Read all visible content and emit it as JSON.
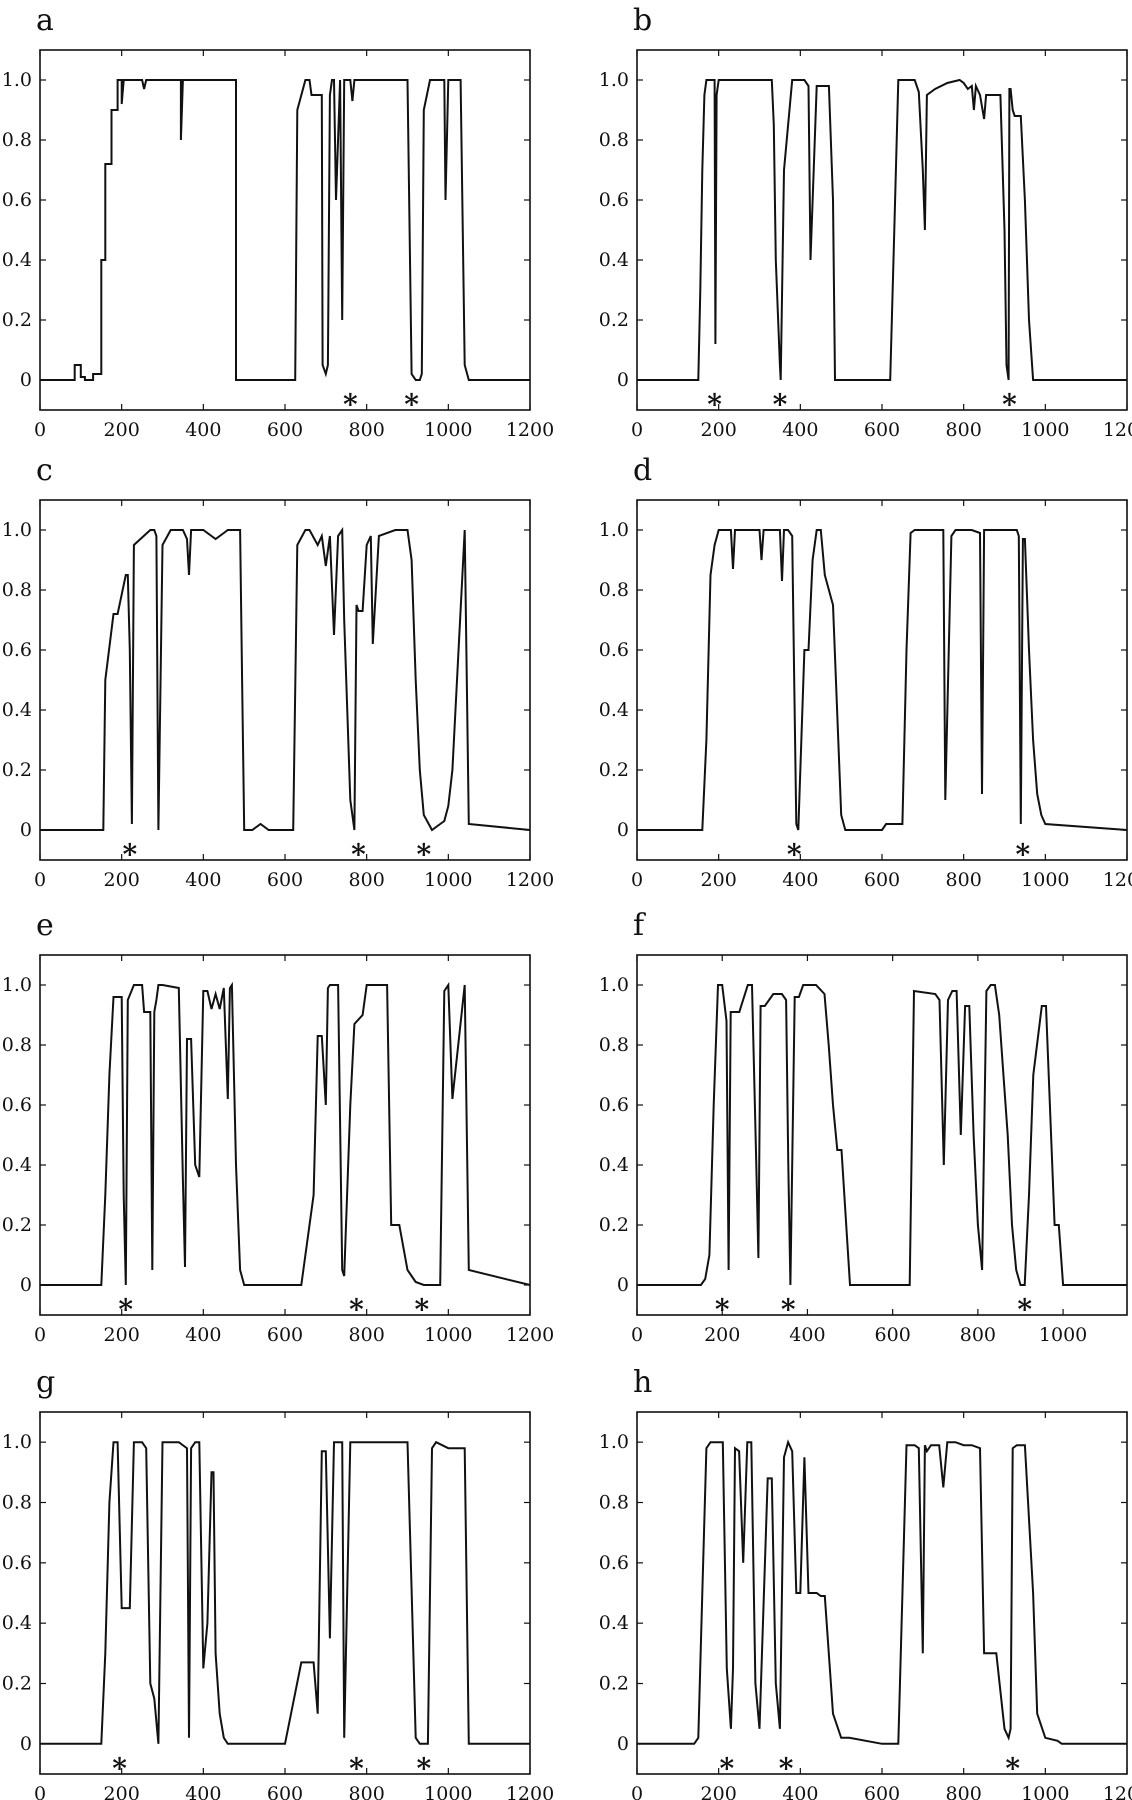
{
  "figure": {
    "background": "#ffffff",
    "line_color": "#111111"
  },
  "chart_data": [
    {
      "panel": "a",
      "type": "line",
      "xlim": [
        0,
        1200
      ],
      "ylim": [
        -0.1,
        1.1
      ],
      "xticks": [
        "0",
        "200",
        "400",
        "600",
        "800",
        "1000",
        "1200"
      ],
      "yticks": [
        "0",
        "0.2",
        "0.4",
        "0.6",
        "0.8",
        "1.0"
      ],
      "x": [
        0,
        85,
        85,
        100,
        100,
        110,
        110,
        130,
        130,
        150,
        150,
        160,
        160,
        175,
        175,
        190,
        190,
        200,
        200,
        205,
        210,
        250,
        255,
        260,
        290,
        345,
        345,
        350,
        360,
        480,
        480,
        620,
        625,
        630,
        650,
        660,
        665,
        690,
        692,
        700,
        705,
        710,
        715,
        720,
        725,
        735,
        740,
        745,
        750,
        760,
        765,
        770,
        775,
        790,
        800,
        805,
        810,
        870,
        900,
        910,
        920,
        930,
        935,
        940,
        955,
        990,
        993,
        1000,
        1030,
        1040,
        1050,
        1200
      ],
      "y": [
        0,
        0,
        0.05,
        0.05,
        0.01,
        0.01,
        0,
        0,
        0.02,
        0.02,
        0.4,
        0.4,
        0.72,
        0.72,
        0.9,
        0.9,
        1.0,
        1.0,
        0.92,
        1.0,
        1.0,
        1.0,
        0.97,
        1.0,
        1.0,
        1.0,
        0.8,
        1.0,
        1.0,
        1.0,
        0,
        0,
        0,
        0.9,
        1.0,
        1.0,
        0.95,
        0.95,
        0.05,
        0.02,
        0.05,
        0.95,
        1.0,
        1.0,
        0.6,
        1.0,
        0.2,
        1.0,
        1.0,
        1.0,
        0.93,
        1.0,
        1.0,
        1.0,
        1.0,
        1.0,
        1.0,
        1.0,
        1.0,
        0.02,
        0,
        0,
        0.02,
        0.9,
        1.0,
        1.0,
        0.6,
        1.0,
        1.0,
        0.05,
        0,
        0
      ],
      "markers": [
        {
          "x": 760,
          "label": "*"
        },
        {
          "x": 910,
          "label": "*"
        }
      ]
    },
    {
      "panel": "b",
      "type": "line",
      "xlim": [
        0,
        1200
      ],
      "ylim": [
        -0.1,
        1.1
      ],
      "xticks": [
        "0",
        "200",
        "400",
        "600",
        "800",
        "1000",
        "1200"
      ],
      "yticks": [
        "0",
        "0.2",
        "0.4",
        "0.6",
        "0.8",
        "1.0"
      ],
      "x": [
        0,
        150,
        155,
        160,
        165,
        170,
        180,
        190,
        192,
        195,
        200,
        220,
        310,
        330,
        335,
        340,
        350,
        352,
        360,
        380,
        395,
        410,
        420,
        425,
        440,
        445,
        470,
        480,
        485,
        620,
        630,
        640,
        660,
        680,
        690,
        700,
        705,
        710,
        730,
        760,
        790,
        800,
        810,
        820,
        825,
        830,
        840,
        850,
        855,
        870,
        880,
        890,
        900,
        905,
        910,
        912,
        915,
        920,
        925,
        930,
        940,
        950,
        960,
        970,
        1200
      ],
      "y": [
        0,
        0,
        0.3,
        0.7,
        0.95,
        1.0,
        1.0,
        1.0,
        0.12,
        0.95,
        1.0,
        1.0,
        1.0,
        1.0,
        0.85,
        0.4,
        0.05,
        0,
        0.7,
        1.0,
        1.0,
        1.0,
        0.98,
        0.4,
        0.98,
        0.98,
        0.98,
        0.6,
        0,
        0,
        0.5,
        1.0,
        1.0,
        1.0,
        0.96,
        0.7,
        0.5,
        0.95,
        0.97,
        0.99,
        1.0,
        0.99,
        0.97,
        0.98,
        0.9,
        0.98,
        0.95,
        0.87,
        0.95,
        0.95,
        0.95,
        0.95,
        0.5,
        0.05,
        0,
        0.97,
        0.97,
        0.9,
        0.88,
        0.88,
        0.88,
        0.6,
        0.2,
        0,
        0
      ],
      "markers": [
        {
          "x": 190,
          "label": "*"
        },
        {
          "x": 350,
          "label": "*"
        },
        {
          "x": 912,
          "label": "*"
        }
      ]
    },
    {
      "panel": "c",
      "type": "line",
      "xlim": [
        0,
        1200
      ],
      "ylim": [
        -0.1,
        1.1
      ],
      "xticks": [
        "0",
        "200",
        "400",
        "600",
        "800",
        "1000",
        "1200"
      ],
      "yticks": [
        "0",
        "0.2",
        "0.4",
        "0.6",
        "0.8",
        "1.0"
      ],
      "x": [
        0,
        155,
        160,
        180,
        190,
        210,
        215,
        220,
        225,
        230,
        270,
        280,
        285,
        290,
        300,
        320,
        350,
        360,
        365,
        370,
        400,
        430,
        450,
        460,
        480,
        490,
        495,
        500,
        520,
        530,
        540,
        560,
        620,
        630,
        650,
        660,
        680,
        690,
        700,
        710,
        720,
        730,
        740,
        745,
        760,
        770,
        775,
        780,
        785,
        790,
        800,
        810,
        815,
        830,
        870,
        900,
        910,
        920,
        930,
        940,
        960,
        980,
        990,
        1000,
        1010,
        1040,
        1050,
        1200
      ],
      "y": [
        0,
        0,
        0.5,
        0.72,
        0.72,
        0.85,
        0.85,
        0.6,
        0.02,
        0.95,
        1.0,
        1.0,
        0.98,
        0,
        0.95,
        1.0,
        1.0,
        0.97,
        0.85,
        1.0,
        1.0,
        0.97,
        0.99,
        1.0,
        1.0,
        1.0,
        0.5,
        0,
        0,
        0.01,
        0.02,
        0,
        0,
        0.95,
        1.0,
        1.0,
        0.95,
        0.98,
        0.88,
        0.98,
        0.65,
        0.98,
        1.0,
        0.7,
        0.1,
        0,
        0.75,
        0.73,
        0.73,
        0.73,
        0.95,
        0.98,
        0.62,
        0.98,
        1.0,
        1.0,
        0.9,
        0.5,
        0.2,
        0.05,
        0,
        0.02,
        0.03,
        0.08,
        0.2,
        1.0,
        0.02,
        0
      ],
      "markers": [
        {
          "x": 220,
          "label": "*"
        },
        {
          "x": 780,
          "label": "*"
        },
        {
          "x": 940,
          "label": "*"
        }
      ]
    },
    {
      "panel": "d",
      "type": "line",
      "xlim": [
        0,
        1200
      ],
      "ylim": [
        -0.1,
        1.1
      ],
      "xticks": [
        "0",
        "200",
        "400",
        "600",
        "800",
        "1000",
        "1200"
      ],
      "yticks": [
        "0",
        "0.2",
        "0.4",
        "0.6",
        "0.8",
        "1.0"
      ],
      "x": [
        0,
        160,
        170,
        180,
        190,
        200,
        210,
        230,
        235,
        240,
        260,
        280,
        300,
        305,
        310,
        330,
        350,
        355,
        360,
        370,
        380,
        385,
        390,
        395,
        410,
        420,
        430,
        440,
        450,
        460,
        470,
        480,
        500,
        510,
        550,
        600,
        610,
        650,
        660,
        670,
        680,
        700,
        730,
        750,
        755,
        770,
        780,
        800,
        820,
        840,
        845,
        850,
        900,
        920,
        930,
        935,
        940,
        945,
        950,
        960,
        970,
        980,
        990,
        1000,
        1200
      ],
      "y": [
        0,
        0,
        0.3,
        0.85,
        0.95,
        1.0,
        1.0,
        1.0,
        0.87,
        1.0,
        1.0,
        1.0,
        1.0,
        0.9,
        1.0,
        1.0,
        1.0,
        0.83,
        1.0,
        1.0,
        0.98,
        0.5,
        0.02,
        0,
        0.6,
        0.6,
        0.9,
        1.0,
        1.0,
        0.85,
        0.8,
        0.75,
        0.05,
        0,
        0,
        0,
        0.02,
        0.02,
        0.6,
        0.99,
        1.0,
        1.0,
        1.0,
        1.0,
        0.1,
        0.98,
        1.0,
        1.0,
        1.0,
        0.99,
        0.12,
        1.0,
        1.0,
        1.0,
        1.0,
        0.98,
        0.02,
        0.97,
        0.97,
        0.6,
        0.3,
        0.12,
        0.05,
        0.02,
        0
      ],
      "markers": [
        {
          "x": 385,
          "label": "*"
        },
        {
          "x": 945,
          "label": "*"
        }
      ]
    },
    {
      "panel": "e",
      "type": "line",
      "xlim": [
        0,
        1200
      ],
      "ylim": [
        -0.1,
        1.1
      ],
      "xticks": [
        "0",
        "200",
        "400",
        "600",
        "800",
        "1000",
        "1200"
      ],
      "yticks": [
        "0",
        "0.2",
        "0.4",
        "0.6",
        "0.8",
        "1.0"
      ],
      "x": [
        0,
        150,
        160,
        170,
        180,
        200,
        205,
        210,
        215,
        230,
        250,
        255,
        270,
        275,
        280,
        285,
        290,
        300,
        340,
        350,
        355,
        360,
        370,
        380,
        390,
        400,
        410,
        420,
        430,
        440,
        450,
        460,
        465,
        470,
        480,
        490,
        500,
        600,
        640,
        670,
        680,
        690,
        700,
        705,
        710,
        730,
        740,
        745,
        760,
        770,
        790,
        800,
        805,
        810,
        830,
        850,
        860,
        870,
        880,
        900,
        910,
        920,
        940,
        960,
        980,
        990,
        1000,
        1010,
        1040,
        1050,
        1200
      ],
      "y": [
        0,
        0,
        0.3,
        0.7,
        0.96,
        0.96,
        0.3,
        0,
        0.95,
        1.0,
        1.0,
        0.91,
        0.91,
        0.05,
        0.91,
        0.95,
        1.0,
        1.0,
        0.99,
        0.35,
        0.06,
        0.82,
        0.82,
        0.4,
        0.36,
        0.98,
        0.98,
        0.92,
        0.97,
        0.92,
        0.99,
        0.62,
        0.99,
        1.0,
        0.4,
        0.05,
        0,
        0,
        0,
        0.3,
        0.83,
        0.83,
        0.6,
        0.99,
        1.0,
        1.0,
        0.05,
        0.03,
        0.6,
        0.87,
        0.9,
        1.0,
        1.0,
        1.0,
        1.0,
        1.0,
        0.2,
        0.2,
        0.2,
        0.05,
        0.03,
        0.01,
        0,
        0,
        0,
        0.98,
        1.0,
        0.62,
        1.0,
        0.05,
        0
      ],
      "markers": [
        {
          "x": 210,
          "label": "*"
        },
        {
          "x": 775,
          "label": "*"
        },
        {
          "x": 935,
          "label": "*"
        }
      ]
    },
    {
      "panel": "f",
      "type": "line",
      "xlim": [
        0,
        1150
      ],
      "ylim": [
        -0.1,
        1.1
      ],
      "xticks": [
        "0",
        "200",
        "400",
        "600",
        "800",
        "1000"
      ],
      "yticks": [
        "0",
        "0.2",
        "0.4",
        "0.6",
        "0.8",
        "1.0"
      ],
      "x": [
        0,
        150,
        160,
        170,
        180,
        190,
        200,
        210,
        215,
        220,
        225,
        240,
        260,
        270,
        280,
        285,
        290,
        300,
        320,
        340,
        350,
        355,
        360,
        370,
        380,
        390,
        400,
        420,
        440,
        450,
        460,
        470,
        480,
        500,
        600,
        640,
        650,
        700,
        710,
        720,
        730,
        740,
        750,
        760,
        770,
        780,
        790,
        800,
        810,
        820,
        830,
        840,
        850,
        870,
        880,
        890,
        900,
        910,
        920,
        930,
        950,
        960,
        980,
        990,
        1000,
        1150
      ],
      "y": [
        0,
        0,
        0.02,
        0.1,
        0.6,
        1.0,
        1.0,
        0.88,
        0.05,
        0.91,
        0.91,
        0.91,
        1.0,
        1.0,
        0.4,
        0.09,
        0.93,
        0.93,
        0.97,
        0.97,
        0.95,
        0.4,
        0,
        0.96,
        0.96,
        1.0,
        1.0,
        1.0,
        0.97,
        0.8,
        0.6,
        0.45,
        0.45,
        0,
        0,
        0,
        0.98,
        0.97,
        0.95,
        0.4,
        0.95,
        0.98,
        0.98,
        0.5,
        0.93,
        0.93,
        0.5,
        0.2,
        0.05,
        0.98,
        1.0,
        1.0,
        0.9,
        0.5,
        0.2,
        0.05,
        0,
        0,
        0.3,
        0.7,
        0.93,
        0.93,
        0.2,
        0.2,
        0,
        0
      ],
      "markers": [
        {
          "x": 200,
          "label": "*"
        },
        {
          "x": 355,
          "label": "*"
        },
        {
          "x": 910,
          "label": "*"
        }
      ]
    },
    {
      "panel": "g",
      "type": "line",
      "xlim": [
        0,
        1200
      ],
      "ylim": [
        -0.1,
        1.1
      ],
      "xticks": [
        "0",
        "200",
        "400",
        "600",
        "800",
        "1000",
        "1200"
      ],
      "yticks": [
        "0",
        "0.2",
        "0.4",
        "0.6",
        "0.8",
        "1.0"
      ],
      "x": [
        0,
        150,
        160,
        170,
        180,
        190,
        200,
        210,
        220,
        230,
        240,
        250,
        260,
        270,
        280,
        290,
        300,
        320,
        340,
        360,
        365,
        370,
        380,
        390,
        400,
        410,
        420,
        425,
        430,
        440,
        450,
        460,
        470,
        480,
        490,
        500,
        600,
        640,
        650,
        660,
        670,
        680,
        690,
        700,
        710,
        720,
        730,
        740,
        745,
        760,
        770,
        775,
        780,
        800,
        850,
        900,
        920,
        930,
        940,
        950,
        960,
        970,
        1000,
        1040,
        1050,
        1200
      ],
      "y": [
        0,
        0,
        0.3,
        0.8,
        1.0,
        1.0,
        0.45,
        0.45,
        0.45,
        1.0,
        1.0,
        1.0,
        0.98,
        0.2,
        0.15,
        0,
        1.0,
        1.0,
        1.0,
        0.98,
        0.02,
        0.98,
        1.0,
        1.0,
        0.25,
        0.4,
        0.9,
        0.9,
        0.3,
        0.1,
        0.02,
        0,
        0,
        0,
        0,
        0,
        0,
        0.27,
        0.27,
        0.27,
        0.27,
        0.1,
        0.97,
        0.97,
        0.35,
        1.0,
        1.0,
        1.0,
        0.02,
        1.0,
        1.0,
        1.0,
        1.0,
        1.0,
        1.0,
        1.0,
        0.02,
        0,
        0,
        0,
        0.98,
        1.0,
        0.98,
        0.98,
        0,
        0
      ],
      "markers": [
        {
          "x": 195,
          "label": "*"
        },
        {
          "x": 775,
          "label": "*"
        },
        {
          "x": 940,
          "label": "*"
        }
      ]
    },
    {
      "panel": "h",
      "type": "line",
      "xlim": [
        0,
        1200
      ],
      "ylim": [
        -0.1,
        1.1
      ],
      "xticks": [
        "0",
        "200",
        "400",
        "600",
        "800",
        "1000",
        "1200"
      ],
      "yticks": [
        "0",
        "0.2",
        "0.4",
        "0.6",
        "0.8",
        "1.0"
      ],
      "x": [
        0,
        140,
        150,
        160,
        170,
        180,
        190,
        200,
        210,
        220,
        230,
        235,
        240,
        250,
        260,
        270,
        280,
        290,
        300,
        320,
        330,
        340,
        350,
        360,
        370,
        380,
        390,
        400,
        410,
        420,
        430,
        440,
        450,
        460,
        480,
        500,
        520,
        600,
        640,
        660,
        680,
        690,
        700,
        705,
        710,
        720,
        740,
        750,
        760,
        770,
        780,
        800,
        820,
        840,
        850,
        860,
        880,
        900,
        910,
        915,
        920,
        930,
        940,
        950,
        970,
        980,
        1000,
        1030,
        1040,
        1050,
        1200
      ],
      "y": [
        0,
        0,
        0.02,
        0.5,
        0.98,
        1.0,
        1.0,
        1.0,
        1.0,
        0.25,
        0.05,
        0.25,
        0.98,
        0.97,
        0.6,
        1.0,
        1.0,
        0.2,
        0.05,
        0.88,
        0.88,
        0.2,
        0.05,
        0.95,
        1.0,
        0.97,
        0.5,
        0.5,
        0.95,
        0.5,
        0.5,
        0.5,
        0.49,
        0.49,
        0.1,
        0.02,
        0.02,
        0,
        0,
        0.99,
        0.99,
        0.98,
        0.3,
        0.99,
        0.97,
        0.99,
        0.99,
        0.85,
        1.0,
        1.0,
        1.0,
        0.99,
        0.99,
        0.98,
        0.3,
        0.3,
        0.3,
        0.05,
        0.02,
        0.05,
        0.98,
        0.99,
        0.99,
        0.99,
        0.5,
        0.1,
        0.02,
        0.01,
        0,
        0,
        0
      ],
      "markers": [
        {
          "x": 220,
          "label": "*"
        },
        {
          "x": 365,
          "label": "*"
        },
        {
          "x": 920,
          "label": "*"
        }
      ]
    }
  ]
}
